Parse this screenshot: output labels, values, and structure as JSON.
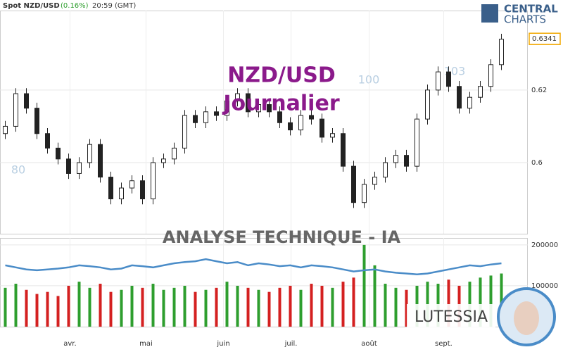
{
  "chart_data": {
    "type": "candlestick",
    "title": "Spot NZD/USD",
    "change": "(0.16%)",
    "time": "20:59 (GMT)",
    "brand": [
      "CENTRAL",
      "CHARTS"
    ],
    "watermark_title": "NZD/USD",
    "watermark_subtitle": "Journalier",
    "watermark_labels": [
      "80",
      "100",
      "103"
    ],
    "banner": "ANALYSE TECHNIQUE - IA",
    "presenter": "LUTESSIA",
    "last_price": 0.6341,
    "up_color": "#2e9e2e",
    "down_color": "#d42020",
    "xlim": [
      -0.5,
      49.5
    ],
    "xticks": [
      {
        "value": 6.13,
        "label": "avr."
      },
      {
        "value": 13.33,
        "label": "mai"
      },
      {
        "value": 20.67,
        "label": "juin"
      },
      {
        "value": 27.07,
        "label": "juil."
      },
      {
        "value": 34.47,
        "label": "août"
      },
      {
        "value": 41.53,
        "label": "sept."
      }
    ],
    "ylim": [
      0.5804,
      0.6419
    ],
    "yticks": [
      0.6,
      0.62
    ],
    "open": [
      0.608,
      0.61,
      0.619,
      0.615,
      0.608,
      0.604,
      0.601,
      0.597,
      0.6,
      0.605,
      0.596,
      0.59,
      0.593,
      0.595,
      0.59,
      0.6,
      0.601,
      0.604,
      0.613,
      0.611,
      0.614,
      0.613,
      0.617,
      0.619,
      0.614,
      0.616,
      0.614,
      0.611,
      0.609,
      0.613,
      0.612,
      0.607,
      0.608,
      0.599,
      0.589,
      0.594,
      0.596,
      0.6,
      0.602,
      0.599,
      0.612,
      0.62,
      0.625,
      0.621,
      0.615,
      0.618,
      0.621,
      0.627
    ],
    "high": [
      0.6115,
      0.6205,
      0.6205,
      0.6165,
      0.6095,
      0.6055,
      0.6025,
      0.6015,
      0.6065,
      0.6065,
      0.5975,
      0.5945,
      0.5965,
      0.5965,
      0.6015,
      0.6025,
      0.6055,
      0.6145,
      0.6145,
      0.6155,
      0.6155,
      0.6185,
      0.6205,
      0.6205,
      0.6175,
      0.6175,
      0.6155,
      0.6125,
      0.6145,
      0.6145,
      0.6135,
      0.6095,
      0.6095,
      0.6005,
      0.5955,
      0.5975,
      0.6015,
      0.6035,
      0.6035,
      0.6135,
      0.6215,
      0.6265,
      0.6265,
      0.6225,
      0.6195,
      0.6225,
      0.6285,
      0.6355
    ],
    "low": [
      0.6065,
      0.6085,
      0.6135,
      0.6065,
      0.6025,
      0.5995,
      0.5955,
      0.5955,
      0.5985,
      0.5945,
      0.5885,
      0.5885,
      0.5915,
      0.5885,
      0.5885,
      0.5985,
      0.5995,
      0.6025,
      0.6095,
      0.6095,
      0.6115,
      0.6115,
      0.6155,
      0.6125,
      0.6125,
      0.6125,
      0.6095,
      0.6075,
      0.6075,
      0.6105,
      0.6055,
      0.6055,
      0.5975,
      0.5875,
      0.5875,
      0.5925,
      0.5945,
      0.5985,
      0.5975,
      0.5975,
      0.6105,
      0.6185,
      0.6195,
      0.6135,
      0.6135,
      0.6165,
      0.6195,
      0.6255
    ],
    "close": [
      0.61,
      0.619,
      0.615,
      0.608,
      0.604,
      0.601,
      0.597,
      0.6,
      0.605,
      0.596,
      0.59,
      0.593,
      0.595,
      0.59,
      0.6,
      0.601,
      0.604,
      0.613,
      0.611,
      0.614,
      0.613,
      0.617,
      0.619,
      0.614,
      0.616,
      0.614,
      0.611,
      0.609,
      0.613,
      0.612,
      0.607,
      0.608,
      0.599,
      0.589,
      0.594,
      0.596,
      0.6,
      0.602,
      0.599,
      0.612,
      0.62,
      0.625,
      0.621,
      0.615,
      0.618,
      0.621,
      0.627,
      0.634
    ],
    "volume": {
      "ylim": [
        0,
        217000
      ],
      "yticks": [
        100000,
        200000
      ],
      "line_color": "#4a8cc8",
      "values": [
        95000,
        105000,
        90000,
        80000,
        85000,
        75000,
        100000,
        110000,
        95000,
        105000,
        85000,
        90000,
        100000,
        95000,
        105000,
        90000,
        95000,
        100000,
        85000,
        90000,
        95000,
        110000,
        100000,
        95000,
        90000,
        85000,
        95000,
        100000,
        90000,
        105000,
        100000,
        95000,
        110000,
        120000,
        200000,
        150000,
        105000,
        95000,
        90000,
        100000,
        110000,
        105000,
        115000,
        100000,
        110000,
        120000,
        125000,
        130000
      ],
      "line_values": [
        150000,
        145000,
        140000,
        138000,
        140000,
        142000,
        145000,
        150000,
        148000,
        145000,
        140000,
        142000,
        150000,
        148000,
        145000,
        150000,
        155000,
        158000,
        160000,
        165000,
        160000,
        155000,
        158000,
        150000,
        155000,
        152000,
        148000,
        150000,
        145000,
        150000,
        148000,
        145000,
        140000,
        135000,
        138000,
        140000,
        135000,
        132000,
        130000,
        128000,
        130000,
        135000,
        140000,
        145000,
        150000,
        148000,
        152000,
        155000
      ]
    }
  }
}
